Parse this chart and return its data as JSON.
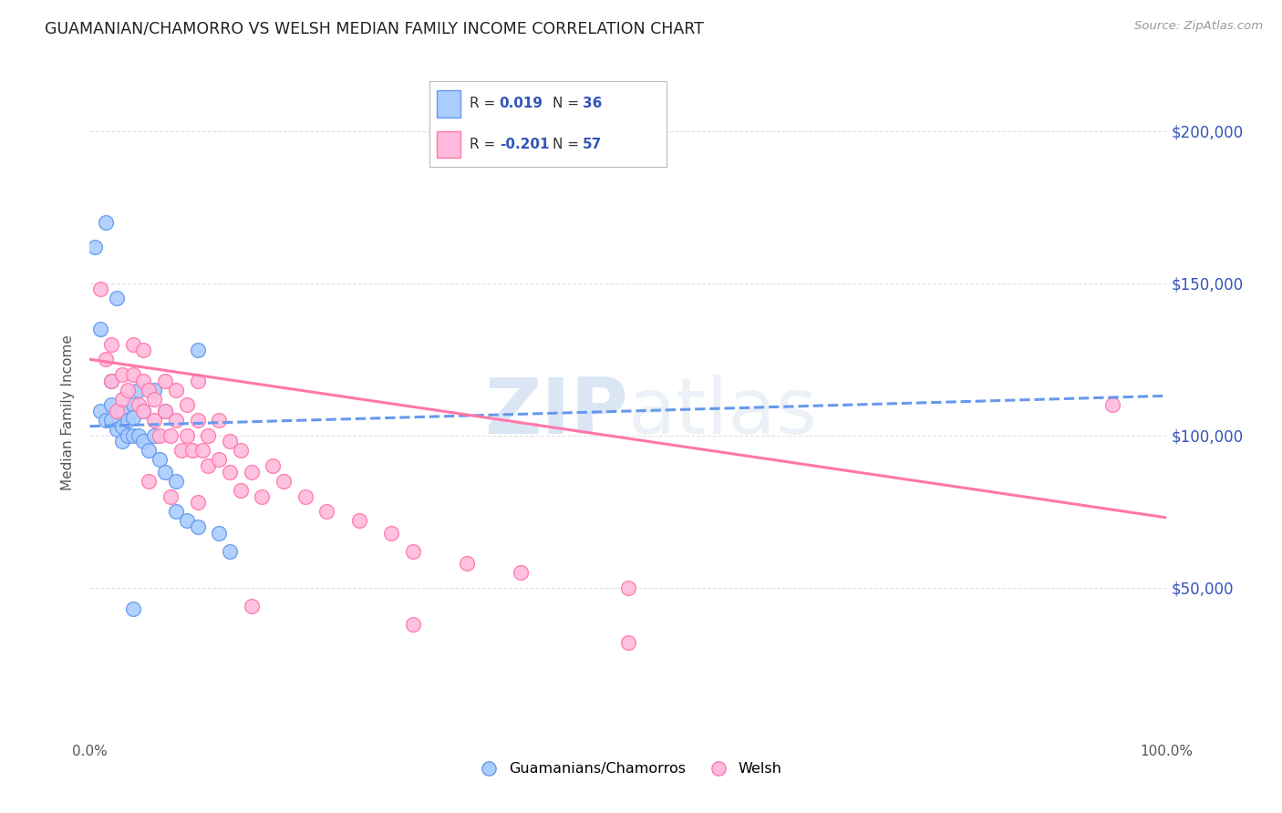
{
  "title": "GUAMANIAN/CHAMORRO VS WELSH MEDIAN FAMILY INCOME CORRELATION CHART",
  "source": "Source: ZipAtlas.com",
  "ylabel": "Median Family Income",
  "ytick_labels": [
    "$50,000",
    "$100,000",
    "$150,000",
    "$200,000"
  ],
  "ytick_values": [
    50000,
    100000,
    150000,
    200000
  ],
  "ylim": [
    0,
    215000
  ],
  "xlim": [
    0.0,
    1.0
  ],
  "watermark": "ZIPatlas",
  "series1_name": "Guamanians/Chamorros",
  "series1_R": "0.019",
  "series1_N": "36",
  "series1_color": "#aaccff",
  "series1_edge_color": "#6699ee",
  "series1_x": [
    0.005,
    0.01,
    0.01,
    0.015,
    0.02,
    0.02,
    0.02,
    0.025,
    0.03,
    0.03,
    0.03,
    0.035,
    0.035,
    0.04,
    0.04,
    0.04,
    0.045,
    0.045,
    0.05,
    0.05,
    0.055,
    0.06,
    0.06,
    0.065,
    0.07,
    0.07,
    0.08,
    0.08,
    0.09,
    0.1,
    0.1,
    0.12,
    0.13,
    0.015,
    0.025,
    0.04
  ],
  "series1_y": [
    162000,
    135000,
    108000,
    105000,
    118000,
    110000,
    105000,
    102000,
    108000,
    103000,
    98000,
    105000,
    100000,
    110000,
    106000,
    100000,
    115000,
    100000,
    108000,
    98000,
    95000,
    115000,
    100000,
    92000,
    108000,
    88000,
    85000,
    75000,
    72000,
    128000,
    70000,
    68000,
    62000,
    170000,
    145000,
    43000
  ],
  "series2_name": "Welsh",
  "series2_R": "-0.201",
  "series2_N": "57",
  "series2_color": "#ffbbdd",
  "series2_edge_color": "#ff77aa",
  "series2_x": [
    0.01,
    0.015,
    0.02,
    0.02,
    0.025,
    0.03,
    0.03,
    0.035,
    0.04,
    0.04,
    0.045,
    0.05,
    0.05,
    0.05,
    0.055,
    0.06,
    0.06,
    0.065,
    0.07,
    0.07,
    0.075,
    0.08,
    0.08,
    0.085,
    0.09,
    0.09,
    0.095,
    0.1,
    0.1,
    0.105,
    0.11,
    0.11,
    0.12,
    0.12,
    0.13,
    0.13,
    0.14,
    0.14,
    0.15,
    0.16,
    0.17,
    0.18,
    0.2,
    0.22,
    0.25,
    0.28,
    0.3,
    0.35,
    0.4,
    0.5,
    0.055,
    0.075,
    0.1,
    0.15,
    0.3,
    0.5,
    0.95
  ],
  "series2_y": [
    148000,
    125000,
    130000,
    118000,
    108000,
    120000,
    112000,
    115000,
    130000,
    120000,
    110000,
    128000,
    118000,
    108000,
    115000,
    112000,
    105000,
    100000,
    118000,
    108000,
    100000,
    115000,
    105000,
    95000,
    110000,
    100000,
    95000,
    118000,
    105000,
    95000,
    100000,
    90000,
    105000,
    92000,
    98000,
    88000,
    95000,
    82000,
    88000,
    80000,
    90000,
    85000,
    80000,
    75000,
    72000,
    68000,
    62000,
    58000,
    55000,
    50000,
    85000,
    80000,
    78000,
    44000,
    38000,
    32000,
    110000
  ],
  "trendline1_x": [
    0.0,
    1.0
  ],
  "trendline1_y": [
    103000,
    113000
  ],
  "trendline2_x": [
    0.0,
    1.0
  ],
  "trendline2_y": [
    125000,
    73000
  ],
  "background_color": "#ffffff",
  "grid_color": "#e0e0e0",
  "title_color": "#222222",
  "legend_val_color": "#3355bb",
  "right_axis_color": "#3355bb"
}
